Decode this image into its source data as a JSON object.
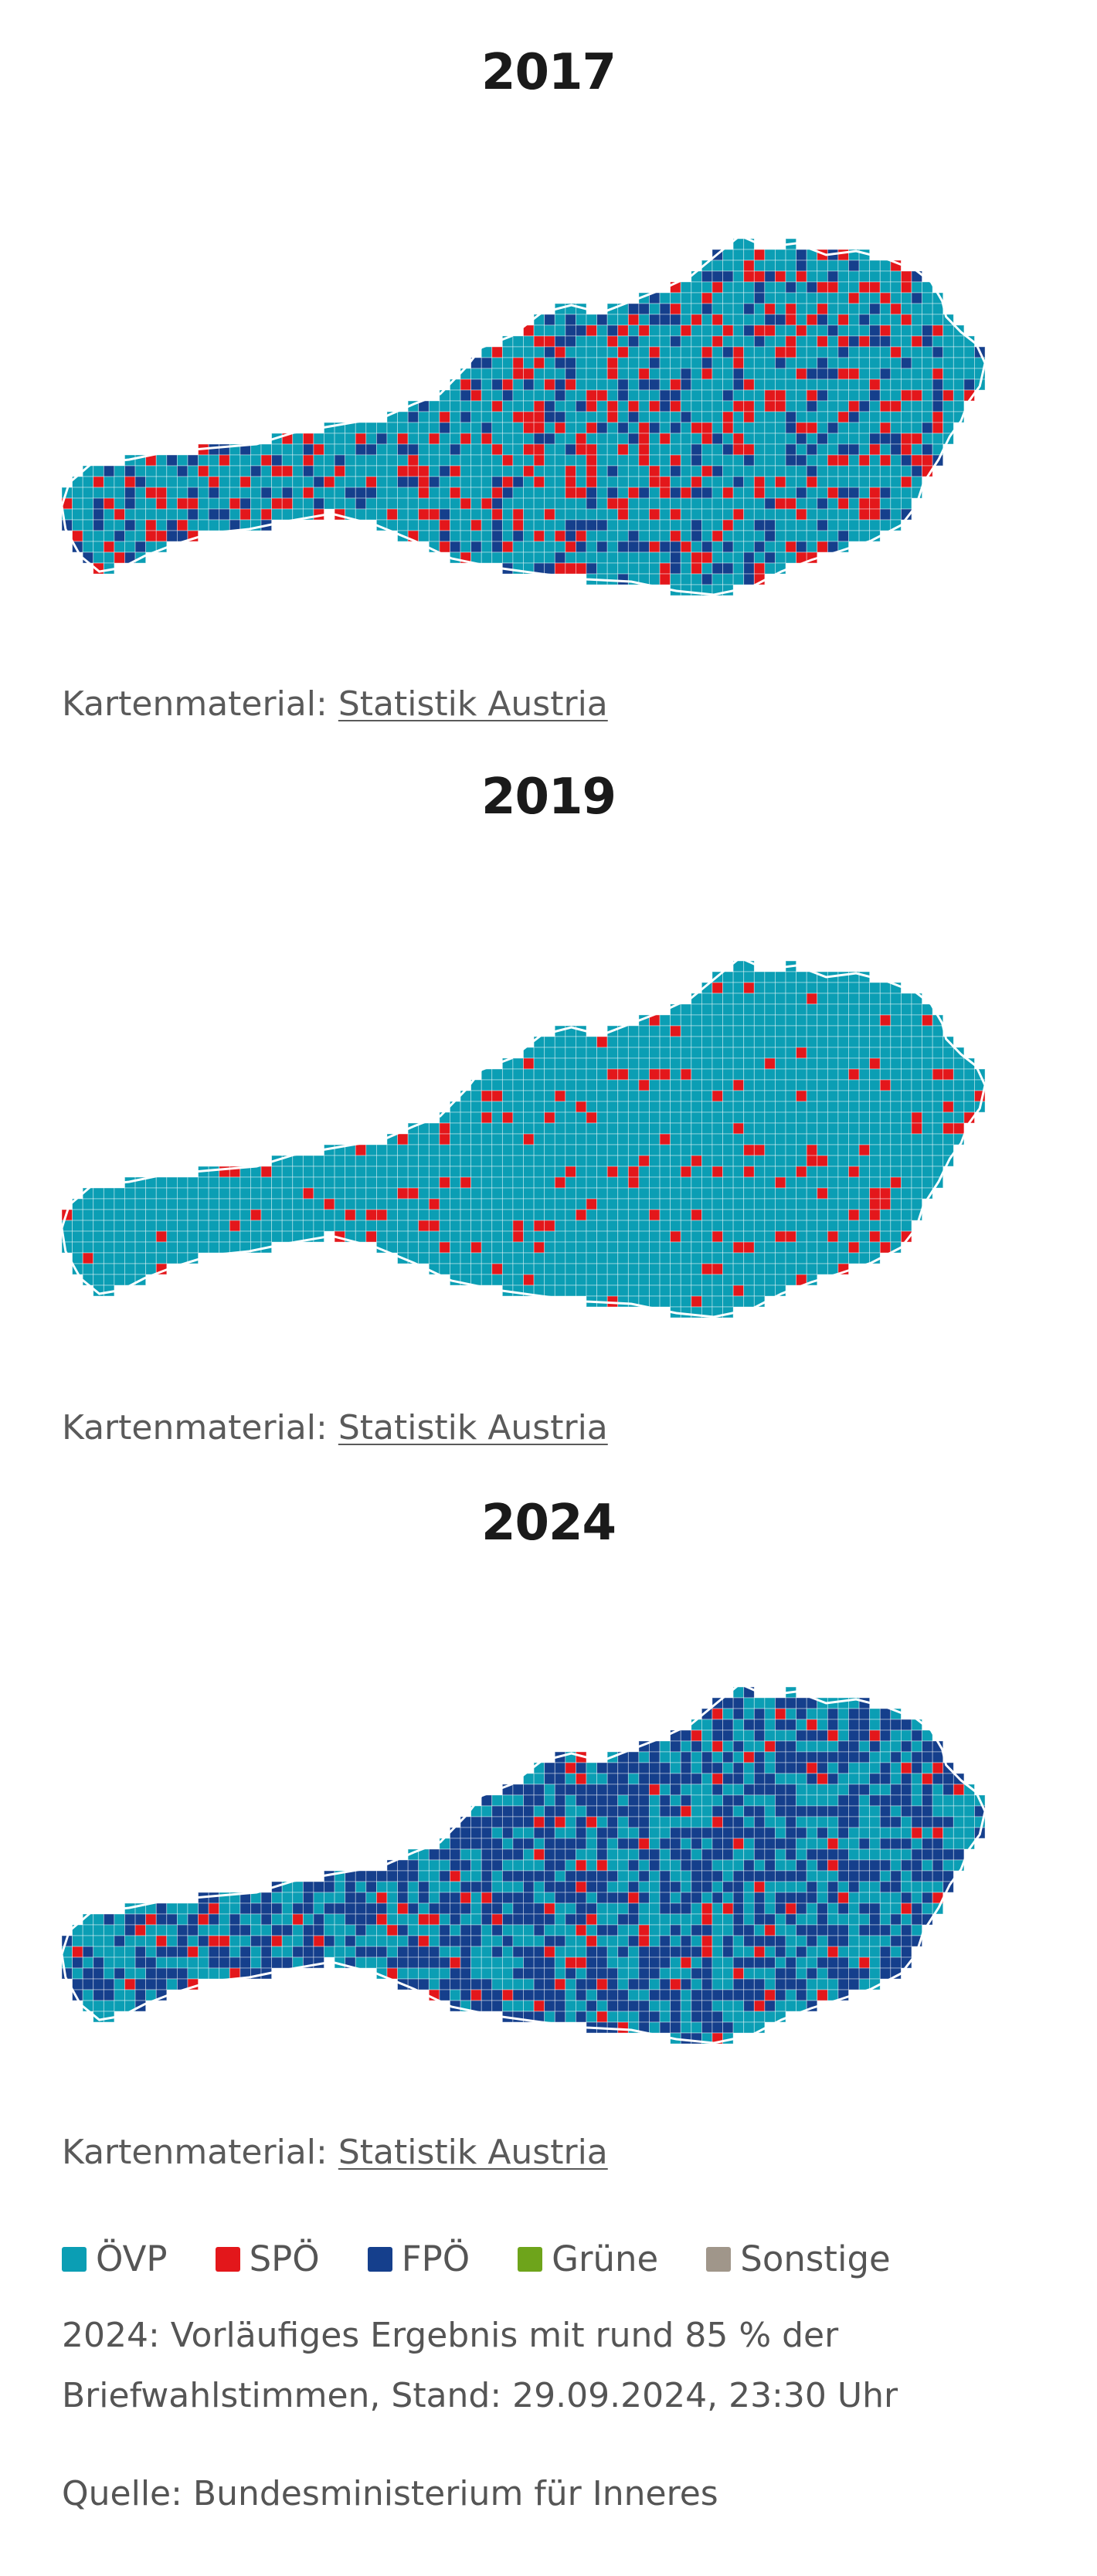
{
  "maps": [
    {
      "year": "2017",
      "source_prefix": "Kartenmaterial:",
      "source_link": "Statistik Austria",
      "composition": {
        "ÖVP": 0.64,
        "SPÖ": 0.18,
        "FPÖ": 0.18
      }
    },
    {
      "year": "2019",
      "source_prefix": "Kartenmaterial:",
      "source_link": "Statistik Austria",
      "composition": {
        "ÖVP": 0.92,
        "SPÖ": 0.08,
        "FPÖ": 0.0
      }
    },
    {
      "year": "2024",
      "source_prefix": "Kartenmaterial:",
      "source_link": "Statistik Austria",
      "composition": {
        "ÖVP": 0.42,
        "SPÖ": 0.06,
        "FPÖ": 0.52
      }
    }
  ],
  "legend": [
    {
      "label": "ÖVP",
      "color": "#0b9eb4"
    },
    {
      "label": "SPÖ",
      "color": "#e3171b"
    },
    {
      "label": "FPÖ",
      "color": "#153f8c"
    },
    {
      "label": "Grüne",
      "color": "#6ea41b"
    },
    {
      "label": "Sonstige",
      "color": "#a0968a"
    }
  ],
  "note": "2024: Vorläufiges Ergebnis mit rund 85 % der Briefwahlstimmen, Stand: 29.09.2024, 23:30 Uhr",
  "source": "Quelle: Bundesministerium für Inneres"
}
